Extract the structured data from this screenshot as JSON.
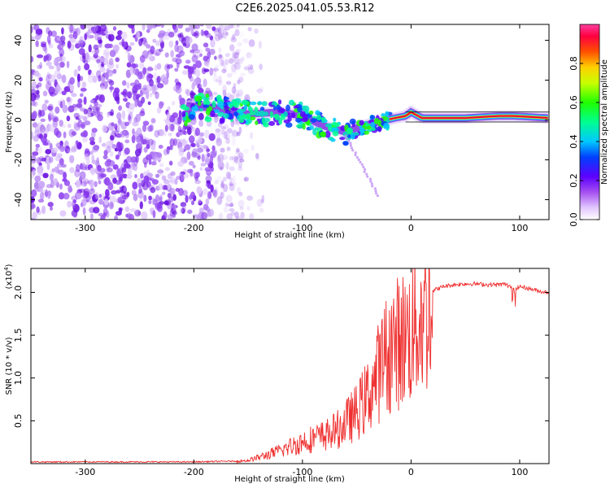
{
  "title": "C2E6.2025.041.05.53.R12",
  "colors": {
    "snr_line": "#ef3030",
    "signal_band": "#e8003c",
    "noise_dots": "#7a22e8"
  },
  "chart_data": [
    {
      "type": "heatmap",
      "name": "spectrogram",
      "title": "C2E6.2025.041.05.53.R12",
      "xlabel": "Height of straight line (km)",
      "ylabel": "Frequency (Hz)",
      "xlim": [
        -350,
        127
      ],
      "ylim": [
        -50,
        48
      ],
      "xticks": [
        -300,
        -200,
        -100,
        0,
        100
      ],
      "xtick_labels": [
        "-300",
        "-200",
        "-100",
        "0",
        "100"
      ],
      "yticks": [
        -40,
        -20,
        0,
        20,
        40
      ],
      "ytick_labels": [
        "-40",
        "-20",
        "0",
        "20",
        "40"
      ],
      "noise_region_x": [
        -350,
        -155
      ],
      "signal_center_hz": [
        [
          -205,
          7
        ],
        [
          -180,
          6
        ],
        [
          -150,
          3
        ],
        [
          -120,
          4
        ],
        [
          -100,
          2
        ],
        [
          -80,
          -3
        ],
        [
          -60,
          -6
        ],
        [
          -45,
          -3
        ],
        [
          -30,
          -1
        ],
        [
          -15,
          1
        ],
        [
          -5,
          2
        ],
        [
          0,
          4
        ],
        [
          10,
          1
        ],
        [
          50,
          1
        ],
        [
          80,
          2
        ],
        [
          95,
          2
        ],
        [
          127,
          1
        ]
      ],
      "colorbar": {
        "label": "Normalized spectral amplitude",
        "range": [
          0.0,
          1.0
        ],
        "ticks": [
          0.0,
          0.2,
          0.4,
          0.6,
          0.8
        ],
        "tick_labels": [
          "0.0",
          "0.2",
          "0.4",
          "0.6",
          "0.8"
        ]
      }
    },
    {
      "type": "line",
      "name": "snr",
      "title": "",
      "xlabel": "Height of straight line (km)",
      "ylabel": "SNR (10 * v/v)",
      "multiplier": "(x10",
      "multiplier_exp": "4",
      "multiplier_close": ")",
      "xlim": [
        -350,
        127
      ],
      "ylim": [
        0,
        2.28
      ],
      "xticks": [
        -300,
        -200,
        -100,
        0,
        100
      ],
      "xtick_labels": [
        "-300",
        "-200",
        "-100",
        "0",
        "100"
      ],
      "yticks": [
        0.5,
        1.0,
        1.5,
        2.0
      ],
      "ytick_labels": [
        "0.5",
        "1.0",
        "1.5",
        "2.0"
      ],
      "series": [
        {
          "name": "SNR",
          "x": [
            -350,
            -200,
            -160,
            -150,
            -140,
            -125,
            -110,
            -95,
            -80,
            -65,
            -50,
            -40,
            -30,
            -20,
            -10,
            0,
            10,
            20,
            30,
            40,
            50,
            60,
            70,
            80,
            90,
            95,
            100,
            110,
            120,
            127
          ],
          "y": [
            0.02,
            0.02,
            0.03,
            0.04,
            0.08,
            0.14,
            0.22,
            0.3,
            0.35,
            0.45,
            0.65,
            0.85,
            1.15,
            1.45,
            1.55,
            1.65,
            1.85,
            2.02,
            2.07,
            2.09,
            2.1,
            2.1,
            2.09,
            2.09,
            2.1,
            2.02,
            2.07,
            2.04,
            2.01,
            2.0
          ]
        }
      ]
    }
  ]
}
